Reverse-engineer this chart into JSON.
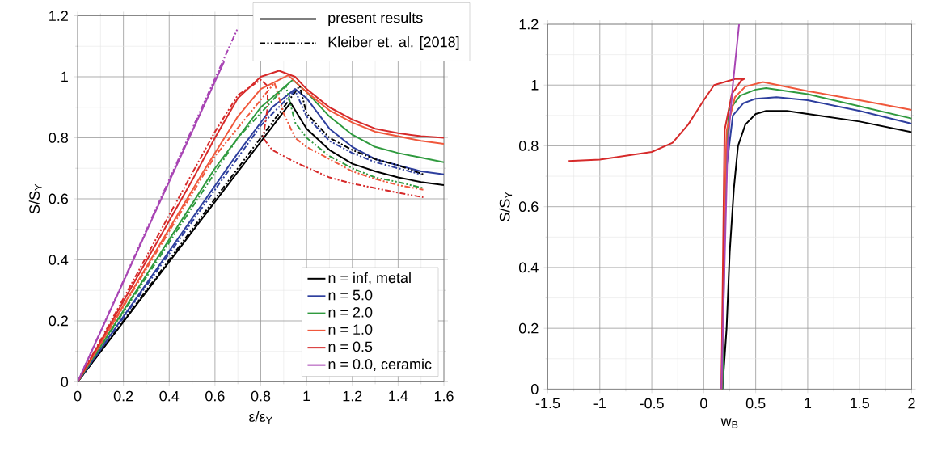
{
  "chart_data": [
    {
      "type": "line",
      "xlabel": "ε/ε$_{Y}$",
      "ylabel": "S/S$_{Y}$",
      "xlim": [
        0,
        1.6
      ],
      "ylim": [
        0,
        1.2
      ],
      "xticks": [
        0,
        0.2,
        0.4,
        0.6,
        0.8,
        1,
        1.2,
        1.4,
        1.6
      ],
      "yticks": [
        0,
        0.2,
        0.4,
        0.6,
        0.8,
        1,
        1.2
      ],
      "grid": true,
      "legend": "bottom right",
      "annotations": [
        "present results",
        "Kleiber et. al. [2018]"
      ],
      "series": [
        {
          "name": "n = inf, metal",
          "color": "#000000",
          "line_style": "solid",
          "x": [
            0,
            0.93,
            1.0,
            1.1,
            1.2,
            1.3,
            1.4,
            1.5,
            1.6
          ],
          "values": [
            0,
            0.915,
            0.83,
            0.76,
            0.715,
            0.69,
            0.67,
            0.655,
            0.645
          ]
        },
        {
          "name": "n = 5.0",
          "color": "#2e3f9e",
          "line_style": "solid",
          "x": [
            0,
            0.7,
            0.85,
            0.95,
            1.0,
            1.1,
            1.2,
            1.3,
            1.4,
            1.5,
            1.6
          ],
          "values": [
            0,
            0.75,
            0.9,
            0.96,
            0.93,
            0.83,
            0.77,
            0.73,
            0.71,
            0.69,
            0.68
          ]
        },
        {
          "name": "n = 2.0",
          "color": "#2f9a3e",
          "line_style": "solid",
          "x": [
            0,
            0.6,
            0.8,
            0.94,
            1.0,
            1.1,
            1.2,
            1.3,
            1.4,
            1.5,
            1.6
          ],
          "values": [
            0,
            0.7,
            0.9,
            0.99,
            0.95,
            0.87,
            0.81,
            0.77,
            0.75,
            0.735,
            0.72
          ]
        },
        {
          "name": "n = 1.0",
          "color": "#f0583c",
          "line_style": "solid",
          "x": [
            0,
            0.55,
            0.7,
            0.8,
            0.92,
            1.0,
            1.1,
            1.2,
            1.3,
            1.4,
            1.5,
            1.6
          ],
          "values": [
            0,
            0.69,
            0.87,
            0.96,
            1.005,
            0.95,
            0.89,
            0.85,
            0.82,
            0.805,
            0.79,
            0.78
          ]
        },
        {
          "name": "n = 0.5",
          "color": "#d62a2a",
          "line_style": "solid",
          "x": [
            0,
            0.5,
            0.6,
            0.7,
            0.8,
            0.88,
            0.95,
            1.0,
            1.1,
            1.2,
            1.3,
            1.4,
            1.5,
            1.6
          ],
          "values": [
            0,
            0.66,
            0.8,
            0.93,
            1.0,
            1.02,
            1.0,
            0.96,
            0.9,
            0.86,
            0.83,
            0.815,
            0.805,
            0.8
          ]
        },
        {
          "name": "n = 0.0, ceramic",
          "color": "#a845b4",
          "line_style": "solid",
          "x": [
            0,
            0.64
          ],
          "values": [
            0,
            1.05
          ]
        },
        {
          "color": "#000000",
          "line_style": "dashdot",
          "x": [
            0,
            0.9,
            0.97,
            1.0,
            1.1,
            1.2,
            1.3,
            1.4,
            1.51
          ],
          "values": [
            0,
            0.9,
            0.97,
            0.88,
            0.8,
            0.76,
            0.73,
            0.71,
            0.68
          ]
        },
        {
          "color": "#2e3f9e",
          "line_style": "dashdot",
          "x": [
            0,
            0.8,
            0.95,
            1.0,
            1.1,
            1.2,
            1.3,
            1.4,
            1.5
          ],
          "values": [
            0,
            0.84,
            0.955,
            0.87,
            0.79,
            0.75,
            0.72,
            0.7,
            0.68
          ]
        },
        {
          "color": "#2f9a3e",
          "line_style": "dashdot",
          "x": [
            0,
            0.7,
            0.91,
            0.95,
            1.0,
            1.1,
            1.2,
            1.3,
            1.4,
            1.51
          ],
          "values": [
            0,
            0.8,
            0.97,
            0.85,
            0.8,
            0.74,
            0.7,
            0.67,
            0.655,
            0.635
          ]
        },
        {
          "color": "#f0583c",
          "line_style": "dashdot",
          "x": [
            0,
            0.6,
            0.86,
            0.9,
            0.95,
            1.0,
            1.1,
            1.2,
            1.3,
            1.4,
            1.51
          ],
          "values": [
            0,
            0.74,
            0.98,
            0.88,
            0.8,
            0.77,
            0.73,
            0.69,
            0.665,
            0.645,
            0.63
          ]
        },
        {
          "color": "#d62a2a",
          "line_style": "dashdot",
          "x": [
            0,
            0.6,
            0.7,
            0.8,
            0.83,
            0.83,
            0.81,
            0.85,
            0.95,
            1.1,
            1.2,
            1.3,
            1.4,
            1.51
          ],
          "values": [
            0,
            0.82,
            0.94,
            0.99,
            0.97,
            0.9,
            0.8,
            0.76,
            0.72,
            0.67,
            0.65,
            0.635,
            0.62,
            0.605
          ]
        },
        {
          "color": "#a845b4",
          "line_style": "dashdot",
          "x": [
            0,
            0.7
          ],
          "values": [
            0,
            1.16
          ]
        }
      ]
    },
    {
      "type": "line",
      "xlabel": "w$_{B}$",
      "ylabel": "S/S$_{Y}$",
      "xlim": [
        -1.5,
        2
      ],
      "ylim": [
        0,
        1.2
      ],
      "xticks": [
        -1.5,
        -1,
        -0.5,
        0,
        0.5,
        1,
        1.5,
        2
      ],
      "yticks": [
        0,
        0.2,
        0.4,
        0.6,
        0.8,
        1,
        1.2
      ],
      "grid": true,
      "series": [
        {
          "color": "#000000",
          "line_style": "solid",
          "x": [
            0.18,
            0.22,
            0.25,
            0.29,
            0.33,
            0.4,
            0.5,
            0.6,
            0.8,
            1,
            1.5,
            2
          ],
          "values": [
            0,
            0.2,
            0.45,
            0.66,
            0.8,
            0.87,
            0.905,
            0.915,
            0.915,
            0.905,
            0.88,
            0.845
          ]
        },
        {
          "color": "#2e3f9e",
          "line_style": "solid",
          "x": [
            0.18,
            0.2,
            0.22,
            0.28,
            0.38,
            0.5,
            0.7,
            1,
            1.5,
            2
          ],
          "values": [
            0,
            0.5,
            0.73,
            0.9,
            0.94,
            0.955,
            0.96,
            0.95,
            0.915,
            0.873
          ]
        },
        {
          "color": "#2f9a3e",
          "line_style": "solid",
          "x": [
            0.18,
            0.2,
            0.24,
            0.35,
            0.5,
            0.6,
            1,
            1.5,
            2
          ],
          "values": [
            0,
            0.6,
            0.915,
            0.965,
            0.985,
            0.99,
            0.97,
            0.93,
            0.89
          ]
        },
        {
          "color": "#f0583c",
          "line_style": "solid",
          "x": [
            0.17,
            0.2,
            0.22,
            0.3,
            0.4,
            0.57,
            1,
            1.5,
            2
          ],
          "values": [
            0,
            0.6,
            0.85,
            0.96,
            0.995,
            1.01,
            0.98,
            0.95,
            0.918
          ]
        },
        {
          "color": "#d62a2a",
          "line_style": "solid",
          "x": [
            0.17,
            0.2,
            0.27,
            0.36,
            0.39,
            0.3,
            0.2,
            0.1,
            0,
            -0.15,
            -0.3,
            -0.5,
            -1,
            -1.3
          ],
          "values": [
            0,
            0.85,
            0.97,
            1.015,
            1.02,
            1.02,
            1.01,
            1.0,
            0.95,
            0.87,
            0.81,
            0.78,
            0.755,
            0.75
          ]
        },
        {
          "color": "#a845b4",
          "line_style": "solid",
          "x": [
            0.17,
            0.2,
            0.23,
            0.28,
            0.34
          ],
          "values": [
            0,
            0.4,
            0.8,
            1.0,
            1.2
          ]
        }
      ]
    }
  ]
}
